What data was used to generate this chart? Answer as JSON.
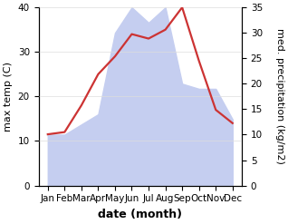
{
  "months": [
    "Jan",
    "Feb",
    "Mar",
    "Apr",
    "May",
    "Jun",
    "Jul",
    "Aug",
    "Sep",
    "Oct",
    "Nov",
    "Dec"
  ],
  "x_positions": [
    0,
    1,
    2,
    3,
    4,
    5,
    6,
    7,
    8,
    9,
    10,
    11
  ],
  "temperature": [
    11.5,
    12,
    18,
    25,
    29,
    34,
    33,
    35,
    40,
    28,
    17,
    14
  ],
  "precipitation": [
    10,
    10,
    12,
    14,
    30,
    35,
    32,
    35,
    20,
    19,
    19,
    13
  ],
  "temp_color": "#cc3333",
  "precip_fill_color": "#c5cef0",
  "left_ylim": [
    0,
    40
  ],
  "right_ylim": [
    0,
    35
  ],
  "left_ylabel": "max temp (C)",
  "right_ylabel": "med. precipitation (kg/m2)",
  "xlabel": "date (month)",
  "left_yticks": [
    0,
    10,
    20,
    30,
    40
  ],
  "right_yticks": [
    0,
    5,
    10,
    15,
    20,
    25,
    30,
    35
  ],
  "ylabel_fontsize": 8,
  "tick_fontsize": 7.5,
  "xlabel_fontsize": 9,
  "linewidth": 1.6
}
